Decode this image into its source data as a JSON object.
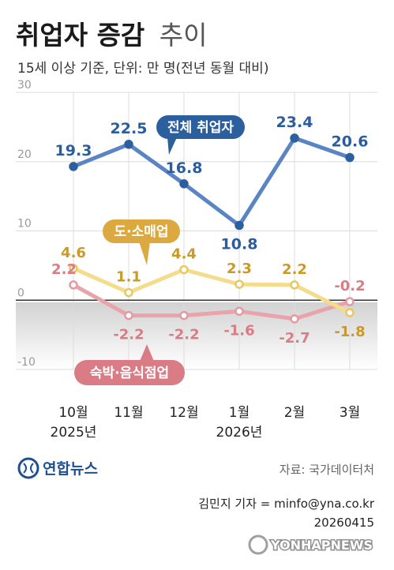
{
  "header": {
    "title_bold": "취업자 증감",
    "title_light": "추이",
    "subtitle": "15세 이상 기준, 단위: 만 명(전년 동월 대비)"
  },
  "chart_data": {
    "type": "line",
    "categories": [
      "10월",
      "11월",
      "12월",
      "1월",
      "2월",
      "3월"
    ],
    "year_labels": [
      {
        "index": 0,
        "label": "2025년"
      },
      {
        "index": 3,
        "label": "2026년"
      }
    ],
    "ylim": [
      -10,
      30
    ],
    "yticks": [
      30,
      20,
      10,
      0,
      -10
    ],
    "series": [
      {
        "name": "전체 취업자",
        "values": [
          19.3,
          22.5,
          16.8,
          10.8,
          23.4,
          20.6
        ],
        "labels": [
          "19.3",
          "22.5",
          "16.8",
          "10.8",
          "23.4",
          "20.6"
        ],
        "color": "#5b84c4"
      },
      {
        "name": "도·소매업",
        "values": [
          4.6,
          1.1,
          4.4,
          2.3,
          2.2,
          -1.8
        ],
        "labels": [
          "4.6",
          "1.1",
          "4.4",
          "2.3",
          "2.2",
          "-1.8"
        ],
        "color": "#f4dc8c"
      },
      {
        "name": "숙박·음식점업",
        "values": [
          2.2,
          -2.2,
          -2.2,
          -1.6,
          -2.7,
          -0.2
        ],
        "labels": [
          "2.2",
          "-2.2",
          "-2.2",
          "-1.6",
          "-2.7",
          "-0.2"
        ],
        "color": "#e9a3aa"
      }
    ],
    "grid": true
  },
  "colors": {
    "blue_label": "#2b5d9e",
    "gold_label": "#c9992c",
    "pink_label": "#d97c86",
    "blue_callout": "#2c5f9e",
    "gold_callout": "#dba940",
    "pink_callout": "#d97c86"
  },
  "footer": {
    "logo": "연합뉴스",
    "source": "자료: 국가데이터처",
    "credit": "김민지 기자 = minfo@yna.co.kr",
    "date": "20260415",
    "watermark": "YONHAPNEWS"
  }
}
